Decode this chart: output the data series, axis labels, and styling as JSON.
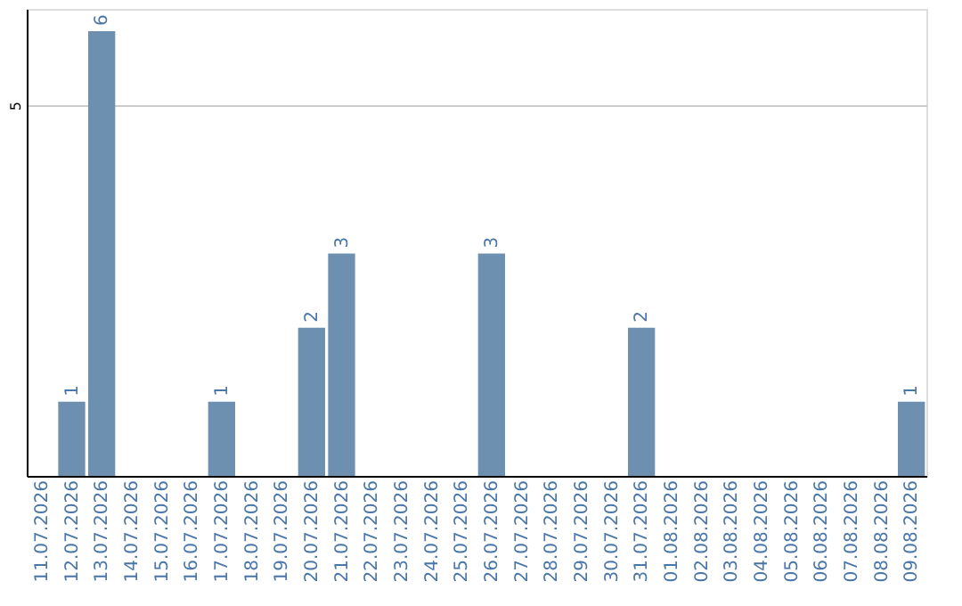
{
  "chart_data": {
    "type": "bar",
    "categories": [
      "11.07.2026",
      "12.07.2026",
      "13.07.2026",
      "14.07.2026",
      "15.07.2026",
      "16.07.2026",
      "17.07.2026",
      "18.07.2026",
      "19.07.2026",
      "20.07.2026",
      "21.07.2026",
      "22.07.2026",
      "23.07.2026",
      "24.07.2026",
      "25.07.2026",
      "26.07.2026",
      "27.07.2026",
      "28.07.2026",
      "29.07.2026",
      "30.07.2026",
      "31.07.2026",
      "01.08.2026",
      "02.08.2026",
      "03.08.2026",
      "04.08.2026",
      "05.08.2026",
      "06.08.2026",
      "07.08.2026",
      "08.08.2026",
      "09.08.2026"
    ],
    "values": [
      0,
      1,
      6,
      0,
      0,
      0,
      1,
      0,
      0,
      2,
      3,
      0,
      0,
      0,
      0,
      3,
      0,
      0,
      0,
      0,
      2,
      0,
      0,
      0,
      0,
      0,
      0,
      0,
      0,
      1
    ],
    "value_labels": [
      null,
      "1",
      "6",
      null,
      null,
      null,
      "1",
      null,
      null,
      "2",
      "3",
      null,
      null,
      null,
      null,
      "3",
      null,
      null,
      null,
      null,
      "2",
      null,
      null,
      null,
      null,
      null,
      null,
      null,
      null,
      "1"
    ],
    "color": "#6d8fb0",
    "ylim": [
      0,
      6.3
    ],
    "yticks": [
      5
    ],
    "grid": "y"
  }
}
